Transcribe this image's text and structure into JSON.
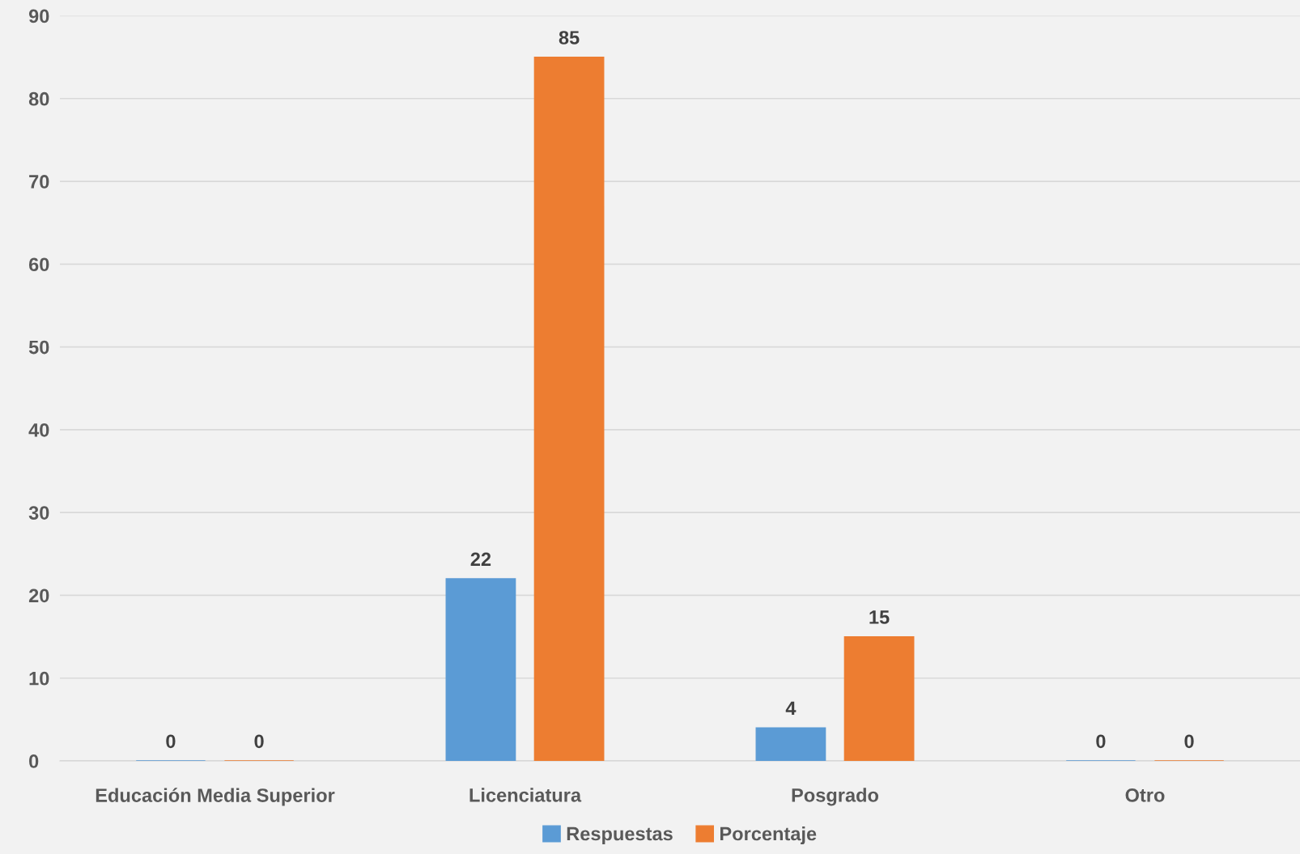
{
  "chart_data": {
    "type": "bar",
    "categories": [
      "Educación Media Superior",
      "Licenciatura",
      "Posgrado",
      "Otro"
    ],
    "series": [
      {
        "name": "Respuestas",
        "color": "#5b9bd5",
        "values": [
          0,
          22,
          4,
          0
        ]
      },
      {
        "name": "Porcentaje",
        "color": "#ed7d31",
        "values": [
          0,
          85,
          15,
          0
        ]
      }
    ],
    "ylim": [
      0,
      90
    ],
    "yticks": [
      0,
      10,
      20,
      30,
      40,
      50,
      60,
      70,
      80,
      90
    ],
    "grid": "y",
    "legend": "bottom",
    "data_labels": true
  }
}
